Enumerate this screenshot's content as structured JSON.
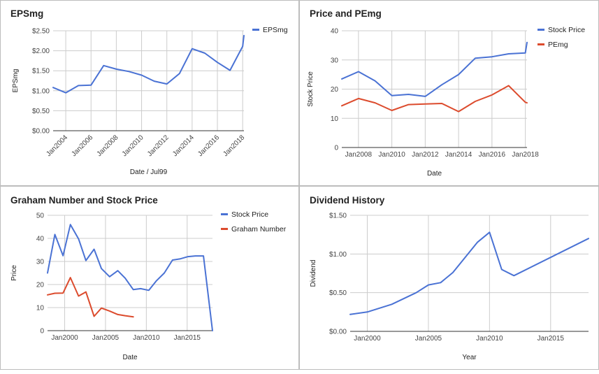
{
  "chart_data": [
    {
      "type": "line",
      "title": "EPSmg",
      "xlabel": "Date / Jul99",
      "ylabel": "EPSmg",
      "x_ticks": [
        2004,
        2006,
        2008,
        2010,
        2012,
        2014,
        2016,
        2018
      ],
      "x_tick_labels": [
        "Jan2004",
        "Jan2006",
        "Jan2008",
        "Jan2010",
        "Jan2012",
        "Jan2014",
        "Jan2016",
        "Jan2018"
      ],
      "x_tick_rotation": -45,
      "xlim": [
        2003.0,
        2018.1
      ],
      "ylim": [
        0,
        2.5
      ],
      "y_ticks": [
        0,
        0.5,
        1,
        1.5,
        2,
        2.5
      ],
      "y_tick_labels": [
        "$0.00",
        "$0.50",
        "$1.00",
        "$1.50",
        "$2.00",
        "$2.50"
      ],
      "grid": true,
      "legend_position": "right",
      "series": [
        {
          "name": "EPSmg",
          "color": "#4a72d4",
          "x": [
            2003.0,
            2004.0,
            2005.0,
            2006.0,
            2007.0,
            2008.0,
            2009.0,
            2010.0,
            2011.0,
            2012.0,
            2013.0,
            2014.0,
            2015.0,
            2016.0,
            2017.0,
            2018.0,
            2018.1
          ],
          "y": [
            1.08,
            0.95,
            1.13,
            1.14,
            1.63,
            1.54,
            1.48,
            1.39,
            1.24,
            1.17,
            1.43,
            2.05,
            1.94,
            1.71,
            1.51,
            2.11,
            2.38
          ]
        }
      ]
    },
    {
      "type": "line",
      "title": "Price and PEmg",
      "xlabel": "Date",
      "ylabel": "Stock Price",
      "x_ticks": [
        2008,
        2010,
        2012,
        2014,
        2016,
        2018
      ],
      "x_tick_labels": [
        "Jan2008",
        "Jan2010",
        "Jan2012",
        "Jan2014",
        "Jan2016",
        "Jan2018"
      ],
      "x_tick_rotation": 0,
      "xlim": [
        2007.0,
        2018.1
      ],
      "ylim": [
        0,
        40
      ],
      "y_ticks": [
        0,
        10,
        20,
        30,
        40
      ],
      "y_tick_labels": [
        "0",
        "10",
        "20",
        "30",
        "40"
      ],
      "grid": true,
      "legend_position": "right",
      "series": [
        {
          "name": "Stock Price",
          "color": "#4a72d4",
          "x": [
            2007.0,
            2008.0,
            2009.0,
            2010.0,
            2011.0,
            2012.0,
            2013.0,
            2014.0,
            2015.0,
            2016.0,
            2017.0,
            2018.0,
            2018.1
          ],
          "y": [
            23.5,
            26.0,
            22.8,
            17.8,
            18.2,
            17.5,
            21.5,
            25.0,
            30.6,
            31.1,
            32.1,
            32.4,
            36.0
          ]
        },
        {
          "name": "PEmg",
          "color": "#dc4b2d",
          "x": [
            2007.0,
            2008.0,
            2009.0,
            2010.0,
            2011.0,
            2012.0,
            2013.0,
            2014.0,
            2015.0,
            2016.0,
            2017.0,
            2018.0,
            2018.1
          ],
          "y": [
            14.3,
            16.8,
            15.3,
            12.7,
            14.7,
            14.9,
            15.1,
            12.3,
            15.8,
            18.0,
            21.2,
            15.5,
            15.3
          ]
        }
      ]
    },
    {
      "type": "line",
      "title": "Graham Number and Stock Price",
      "xlabel": "Date",
      "ylabel": "Price",
      "x_ticks": [
        2000,
        2005,
        2010,
        2015
      ],
      "x_tick_labels": [
        "Jan2000",
        "Jan2005",
        "Jan2010",
        "Jan2015"
      ],
      "x_tick_rotation": 0,
      "xlim": [
        1997.9,
        2018.1
      ],
      "ylim": [
        0,
        50
      ],
      "y_ticks": [
        0,
        10,
        20,
        30,
        40,
        50
      ],
      "y_tick_labels": [
        "0",
        "10",
        "20",
        "30",
        "40",
        "50"
      ],
      "grid": true,
      "legend_position": "right",
      "series": [
        {
          "name": "Stock Price",
          "color": "#4a72d4",
          "x": [
            1997.9,
            1998.8,
            1999.8,
            2000.7,
            2001.7,
            2002.6,
            2003.6,
            2004.5,
            2005.5,
            2006.5,
            2007.4,
            2008.4,
            2009.3,
            2010.3,
            2011.2,
            2012.2,
            2013.2,
            2014.1,
            2015.1,
            2016.0,
            2017.0,
            2018.1
          ],
          "y": [
            25.0,
            41.7,
            32.5,
            46.0,
            39.8,
            30.4,
            35.3,
            26.9,
            23.4,
            26.0,
            22.8,
            17.8,
            18.2,
            17.5,
            21.5,
            25.0,
            30.6,
            31.1,
            32.1,
            32.4,
            32.4,
            0.0
          ]
        },
        {
          "name": "Graham Number",
          "color": "#dc4b2d",
          "x": [
            1997.9,
            1998.8,
            1999.8,
            2000.7,
            2001.7,
            2002.6,
            2003.6,
            2004.5,
            2005.5,
            2006.5,
            2007.4,
            2008.4
          ],
          "y": [
            15.5,
            16.2,
            16.3,
            23.0,
            15.0,
            16.8,
            6.2,
            9.8,
            8.5,
            7.0,
            6.5,
            6.0
          ]
        }
      ]
    },
    {
      "type": "line",
      "title": "Dividend History",
      "xlabel": "Year",
      "ylabel": "Dividend",
      "x_ticks": [
        2000,
        2005,
        2010,
        2015
      ],
      "x_tick_labels": [
        "Jan2000",
        "Jan2005",
        "Jan2010",
        "Jan2015"
      ],
      "x_tick_rotation": 0,
      "xlim": [
        1998.6,
        2018.1
      ],
      "ylim": [
        0,
        1.5
      ],
      "y_ticks": [
        0,
        0.5,
        1,
        1.5
      ],
      "y_tick_labels": [
        "$0.00",
        "$0.50",
        "$1.00",
        "$1.50"
      ],
      "grid": true,
      "legend_position": "none",
      "series": [
        {
          "name": "",
          "color": "#4a72d4",
          "x": [
            1998.6,
            2000.0,
            2002.0,
            2004.0,
            2005.0,
            2006.0,
            2007.0,
            2009.0,
            2010.0,
            2011.0,
            2012.0,
            2018.1
          ],
          "y": [
            0.22,
            0.25,
            0.35,
            0.5,
            0.6,
            0.63,
            0.76,
            1.15,
            1.28,
            0.8,
            0.72,
            1.2
          ]
        }
      ]
    }
  ]
}
